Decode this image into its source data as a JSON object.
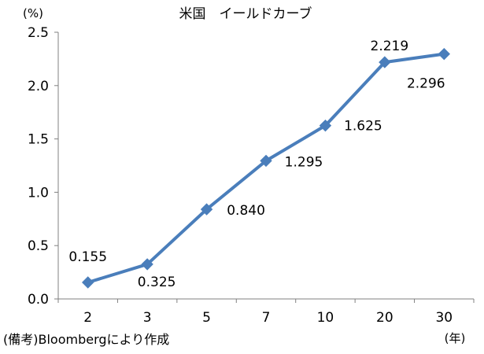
{
  "chart_data": {
    "type": "line",
    "title": "米国　イールドカーブ",
    "ylabel": "(%)",
    "xlabel": "(年)",
    "categories": [
      "2",
      "3",
      "5",
      "7",
      "10",
      "20",
      "30"
    ],
    "series": [
      {
        "values": [
          0.155,
          0.325,
          0.84,
          1.295,
          1.625,
          2.219,
          2.296
        ],
        "labels": [
          "0.155",
          "0.325",
          "0.840",
          "1.295",
          "1.625",
          "2.219",
          "2.296"
        ],
        "color": "#4a7ebb"
      }
    ],
    "ylim": [
      0.0,
      2.5
    ],
    "yticks": [
      0.0,
      0.5,
      1.0,
      1.5,
      2.0,
      2.5
    ],
    "ytick_labels": [
      "0.0",
      "0.5",
      "1.0",
      "1.5",
      "2.0",
      "2.5"
    ],
    "grid": false,
    "marker": "diamond"
  },
  "note": "(備考)Bloombergにより作成"
}
